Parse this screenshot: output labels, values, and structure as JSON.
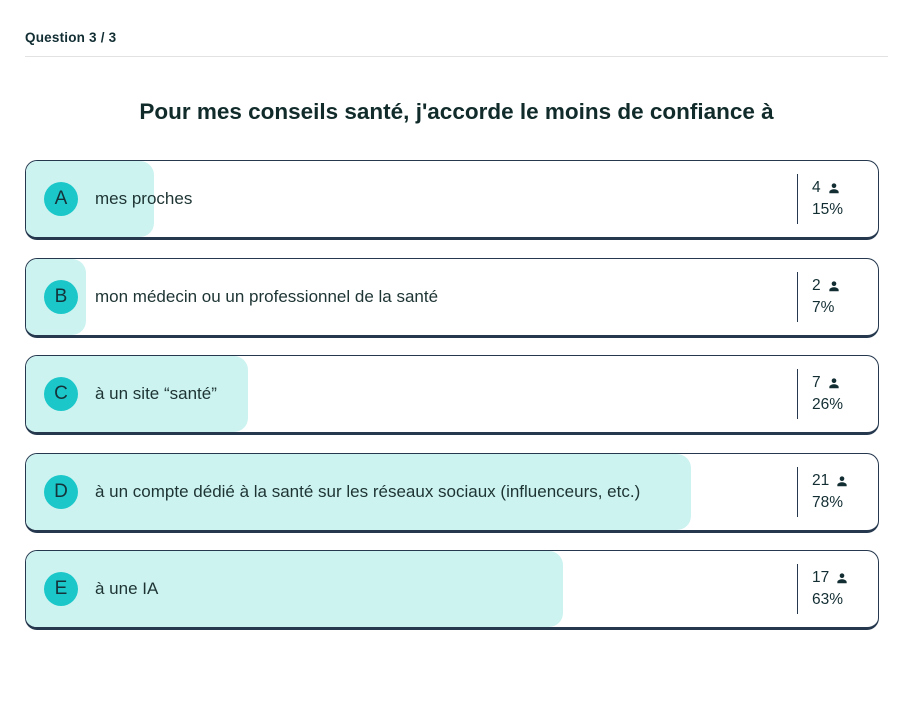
{
  "header": {
    "counter": "Question 3 / 3"
  },
  "question": {
    "title": "Pour mes conseils santé, j'accorde le moins de confiance à"
  },
  "options": [
    {
      "letter": "A",
      "label": "mes proches",
      "votes": "4",
      "percent": "15%",
      "percent_value": 15
    },
    {
      "letter": "B",
      "label": "mon médecin ou un professionnel de la santé",
      "votes": "2",
      "percent": "7%",
      "percent_value": 7
    },
    {
      "letter": "C",
      "label": "à un site “santé”",
      "votes": "7",
      "percent": "26%",
      "percent_value": 26
    },
    {
      "letter": "D",
      "label": "à un compte dédié à la santé sur les réseaux sociaux (influenceurs, etc.)",
      "votes": "21",
      "percent": "78%",
      "percent_value": 78
    },
    {
      "letter": "E",
      "label": "à une IA",
      "votes": "17",
      "percent": "63%",
      "percent_value": 63
    }
  ],
  "chart_data": {
    "type": "bar",
    "categories": [
      "mes proches",
      "mon médecin ou un professionnel de la santé",
      "à un site “santé”",
      "à un compte dédié à la santé sur les réseaux sociaux (influenceurs, etc.)",
      "à une IA"
    ],
    "series": [
      {
        "name": "votes",
        "values": [
          4,
          2,
          7,
          21,
          17
        ]
      },
      {
        "name": "percent",
        "values": [
          15,
          7,
          26,
          78,
          63
        ]
      }
    ],
    "title": "Pour mes conseils santé, j'accorde le moins de confiance à",
    "xlabel": "",
    "ylabel": "",
    "ylim": [
      0,
      100
    ]
  },
  "icons": {
    "votes": "person-icon"
  },
  "colors": {
    "accent": "#1bc7c9",
    "bar_fill": "#cdf3f1",
    "card_border": "#25384e",
    "text": "#16302f",
    "divider": "#e2e2e2"
  }
}
